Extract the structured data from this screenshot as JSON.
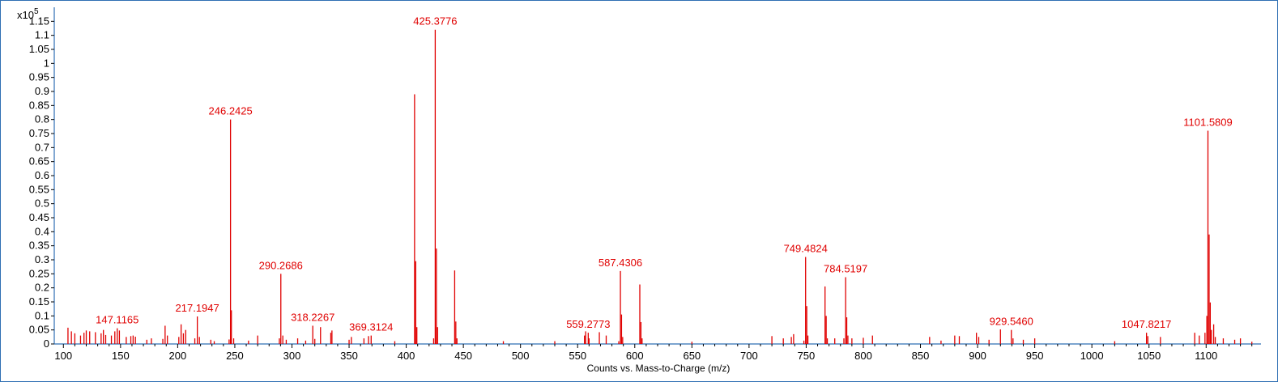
{
  "chart_data": {
    "type": "bar",
    "multiplier_label": "x10",
    "multiplier_exponent": "5",
    "xlabel": "Counts vs. Mass-to-Charge (m/z)",
    "ylabel": "",
    "xlim": [
      92,
      1148
    ],
    "ylim": [
      0,
      1.2
    ],
    "y_ticks": [
      0,
      0.05,
      0.1,
      0.15,
      0.2,
      0.25,
      0.3,
      0.35,
      0.4,
      0.45,
      0.5,
      0.55,
      0.6,
      0.65,
      0.7,
      0.75,
      0.8,
      0.85,
      0.9,
      0.95,
      1,
      1.05,
      1.1,
      1.15
    ],
    "y_tick_labels": [
      "0",
      "0.05",
      "0.1",
      "0.15",
      "0.2",
      "0.25",
      "0.3",
      "0.35",
      "0.4",
      "0.45",
      "0.5",
      "0.55",
      "0.6",
      "0.65",
      "0.7",
      "0.75",
      "0.8",
      "0.85",
      "0.9",
      "0.95",
      "1",
      "1.05",
      "1.1",
      "1.15"
    ],
    "x_ticks": [
      100,
      150,
      200,
      250,
      300,
      350,
      400,
      450,
      500,
      550,
      600,
      650,
      700,
      750,
      800,
      850,
      900,
      950,
      1000,
      1050,
      1100
    ],
    "x_tick_labels": [
      "100",
      "150",
      "200",
      "250",
      "300",
      "350",
      "400",
      "450",
      "500",
      "550",
      "600",
      "650",
      "700",
      "750",
      "800",
      "850",
      "900",
      "950",
      "1000",
      "1050",
      "1100"
    ],
    "grid": false,
    "line_color": "#e00000",
    "axis_color": "#2f6fb3",
    "peaks": [
      {
        "mz": 104,
        "y": 0.058
      },
      {
        "mz": 107,
        "y": 0.045
      },
      {
        "mz": 110,
        "y": 0.038
      },
      {
        "mz": 115,
        "y": 0.03
      },
      {
        "mz": 118,
        "y": 0.04
      },
      {
        "mz": 120,
        "y": 0.048
      },
      {
        "mz": 123,
        "y": 0.045
      },
      {
        "mz": 128,
        "y": 0.042
      },
      {
        "mz": 133,
        "y": 0.038
      },
      {
        "mz": 135,
        "y": 0.05
      },
      {
        "mz": 137,
        "y": 0.032
      },
      {
        "mz": 142,
        "y": 0.03
      },
      {
        "mz": 145,
        "y": 0.045
      },
      {
        "mz": 147.1165,
        "y": 0.056
      },
      {
        "mz": 149,
        "y": 0.048
      },
      {
        "mz": 155,
        "y": 0.025
      },
      {
        "mz": 159,
        "y": 0.028
      },
      {
        "mz": 161,
        "y": 0.03
      },
      {
        "mz": 163,
        "y": 0.026
      },
      {
        "mz": 173,
        "y": 0.015
      },
      {
        "mz": 177,
        "y": 0.02
      },
      {
        "mz": 187,
        "y": 0.018
      },
      {
        "mz": 189,
        "y": 0.065
      },
      {
        "mz": 191,
        "y": 0.03
      },
      {
        "mz": 201,
        "y": 0.025
      },
      {
        "mz": 203,
        "y": 0.07
      },
      {
        "mz": 205,
        "y": 0.038
      },
      {
        "mz": 207,
        "y": 0.05
      },
      {
        "mz": 215,
        "y": 0.02
      },
      {
        "mz": 217.1947,
        "y": 0.098
      },
      {
        "mz": 219,
        "y": 0.025
      },
      {
        "mz": 229,
        "y": 0.015
      },
      {
        "mz": 232,
        "y": 0.01
      },
      {
        "mz": 245,
        "y": 0.016
      },
      {
        "mz": 246.2425,
        "y": 0.8
      },
      {
        "mz": 247,
        "y": 0.12
      },
      {
        "mz": 249,
        "y": 0.02
      },
      {
        "mz": 262,
        "y": 0.012
      },
      {
        "mz": 270,
        "y": 0.03
      },
      {
        "mz": 289,
        "y": 0.02
      },
      {
        "mz": 290.2686,
        "y": 0.25
      },
      {
        "mz": 292,
        "y": 0.03
      },
      {
        "mz": 295,
        "y": 0.015
      },
      {
        "mz": 305,
        "y": 0.02
      },
      {
        "mz": 312,
        "y": 0.012
      },
      {
        "mz": 318.2267,
        "y": 0.065
      },
      {
        "mz": 320,
        "y": 0.018
      },
      {
        "mz": 325,
        "y": 0.06
      },
      {
        "mz": 334,
        "y": 0.04
      },
      {
        "mz": 335,
        "y": 0.048
      },
      {
        "mz": 350,
        "y": 0.015
      },
      {
        "mz": 352,
        "y": 0.025
      },
      {
        "mz": 363,
        "y": 0.02
      },
      {
        "mz": 367,
        "y": 0.028
      },
      {
        "mz": 369.3124,
        "y": 0.03
      },
      {
        "mz": 390,
        "y": 0.01
      },
      {
        "mz": 407.3,
        "y": 0.89
      },
      {
        "mz": 408.3,
        "y": 0.295
      },
      {
        "mz": 409.3,
        "y": 0.06
      },
      {
        "mz": 424,
        "y": 0.02
      },
      {
        "mz": 425.3776,
        "y": 1.12
      },
      {
        "mz": 426.4,
        "y": 0.34
      },
      {
        "mz": 427.4,
        "y": 0.06
      },
      {
        "mz": 442.4,
        "y": 0.262
      },
      {
        "mz": 443.4,
        "y": 0.08
      },
      {
        "mz": 444.4,
        "y": 0.02
      },
      {
        "mz": 485,
        "y": 0.01
      },
      {
        "mz": 530,
        "y": 0.01
      },
      {
        "mz": 556,
        "y": 0.03
      },
      {
        "mz": 557,
        "y": 0.045
      },
      {
        "mz": 559.2773,
        "y": 0.04
      },
      {
        "mz": 560,
        "y": 0.02
      },
      {
        "mz": 569,
        "y": 0.042
      },
      {
        "mz": 575,
        "y": 0.03
      },
      {
        "mz": 586,
        "y": 0.01
      },
      {
        "mz": 587.4306,
        "y": 0.26
      },
      {
        "mz": 588.4,
        "y": 0.105
      },
      {
        "mz": 589.4,
        "y": 0.025
      },
      {
        "mz": 604.4,
        "y": 0.212
      },
      {
        "mz": 605.4,
        "y": 0.078
      },
      {
        "mz": 606.4,
        "y": 0.02
      },
      {
        "mz": 650,
        "y": 0.008
      },
      {
        "mz": 720,
        "y": 0.028
      },
      {
        "mz": 730,
        "y": 0.02
      },
      {
        "mz": 737,
        "y": 0.025
      },
      {
        "mz": 739,
        "y": 0.035
      },
      {
        "mz": 748,
        "y": 0.012
      },
      {
        "mz": 749.4824,
        "y": 0.31
      },
      {
        "mz": 750.5,
        "y": 0.135
      },
      {
        "mz": 751.5,
        "y": 0.03
      },
      {
        "mz": 766.5,
        "y": 0.205
      },
      {
        "mz": 767.5,
        "y": 0.1
      },
      {
        "mz": 768.5,
        "y": 0.02
      },
      {
        "mz": 775,
        "y": 0.02
      },
      {
        "mz": 783,
        "y": 0.02
      },
      {
        "mz": 784.5197,
        "y": 0.238
      },
      {
        "mz": 785.5,
        "y": 0.095
      },
      {
        "mz": 786.5,
        "y": 0.03
      },
      {
        "mz": 790,
        "y": 0.02
      },
      {
        "mz": 800,
        "y": 0.022
      },
      {
        "mz": 808,
        "y": 0.03
      },
      {
        "mz": 858,
        "y": 0.025
      },
      {
        "mz": 868,
        "y": 0.012
      },
      {
        "mz": 880,
        "y": 0.03
      },
      {
        "mz": 884,
        "y": 0.028
      },
      {
        "mz": 899,
        "y": 0.04
      },
      {
        "mz": 901,
        "y": 0.025
      },
      {
        "mz": 910,
        "y": 0.015
      },
      {
        "mz": 920,
        "y": 0.052
      },
      {
        "mz": 929.546,
        "y": 0.05
      },
      {
        "mz": 931,
        "y": 0.02
      },
      {
        "mz": 940,
        "y": 0.015
      },
      {
        "mz": 950,
        "y": 0.02
      },
      {
        "mz": 1020,
        "y": 0.01
      },
      {
        "mz": 1047.8217,
        "y": 0.04
      },
      {
        "mz": 1049,
        "y": 0.028
      },
      {
        "mz": 1060,
        "y": 0.025
      },
      {
        "mz": 1090,
        "y": 0.04
      },
      {
        "mz": 1094,
        "y": 0.03
      },
      {
        "mz": 1099,
        "y": 0.04
      },
      {
        "mz": 1100.6,
        "y": 0.1
      },
      {
        "mz": 1101.5809,
        "y": 0.76
      },
      {
        "mz": 1102.6,
        "y": 0.39
      },
      {
        "mz": 1103.6,
        "y": 0.148
      },
      {
        "mz": 1104.6,
        "y": 0.05
      },
      {
        "mz": 1106.6,
        "y": 0.07
      },
      {
        "mz": 1108,
        "y": 0.025
      },
      {
        "mz": 1115,
        "y": 0.02
      },
      {
        "mz": 1125,
        "y": 0.015
      },
      {
        "mz": 1130,
        "y": 0.02
      },
      {
        "mz": 1140,
        "y": 0.008
      }
    ],
    "annotations": [
      {
        "mz": 147.1165,
        "y": 0.056,
        "label": "147.1165"
      },
      {
        "mz": 217.1947,
        "y": 0.098,
        "label": "217.1947"
      },
      {
        "mz": 246.2425,
        "y": 0.8,
        "label": "246.2425"
      },
      {
        "mz": 290.2686,
        "y": 0.25,
        "label": "290.2686"
      },
      {
        "mz": 318.2267,
        "y": 0.065,
        "label": "318.2267"
      },
      {
        "mz": 369.3124,
        "y": 0.03,
        "label": "369.3124"
      },
      {
        "mz": 425.3776,
        "y": 1.12,
        "label": "425.3776"
      },
      {
        "mz": 559.2773,
        "y": 0.04,
        "label": "559.2773"
      },
      {
        "mz": 587.4306,
        "y": 0.26,
        "label": "587.4306"
      },
      {
        "mz": 749.4824,
        "y": 0.31,
        "label": "749.4824"
      },
      {
        "mz": 784.5197,
        "y": 0.238,
        "label": "784.5197"
      },
      {
        "mz": 929.546,
        "y": 0.05,
        "label": "929.5460"
      },
      {
        "mz": 1047.8217,
        "y": 0.04,
        "label": "1047.8217"
      },
      {
        "mz": 1101.5809,
        "y": 0.76,
        "label": "1101.5809"
      }
    ]
  }
}
